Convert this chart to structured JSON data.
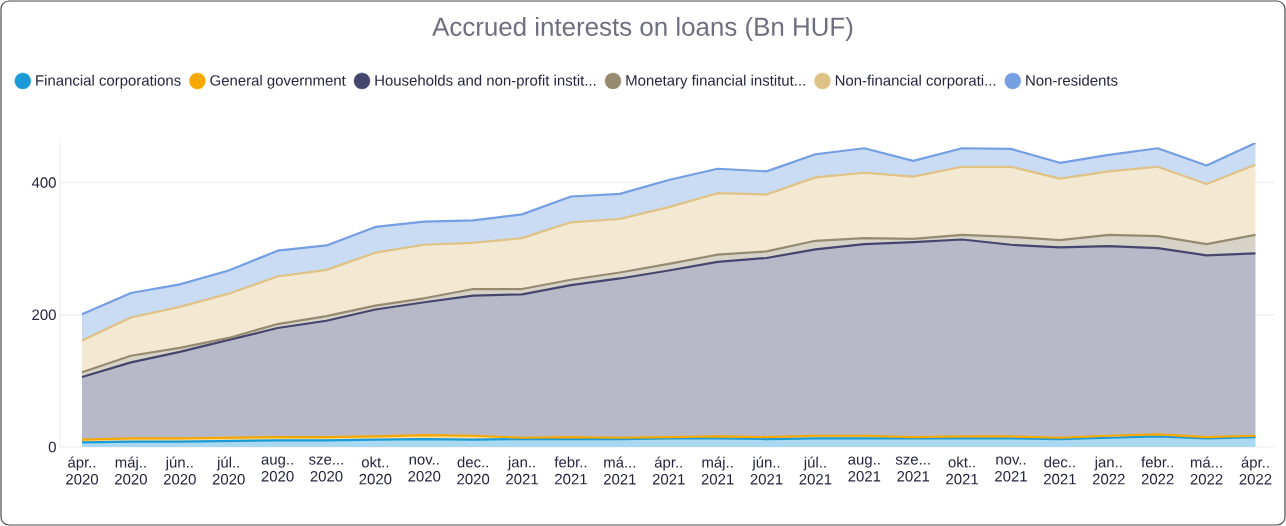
{
  "chart_data": {
    "type": "area",
    "title": "Accrued interests on loans (Bn HUF)",
    "stacked": true,
    "grid": "y",
    "legend": "top",
    "categories": [
      "ápr.. 2020",
      "máj.. 2020",
      "jún.. 2020",
      "júl.. 2020",
      "aug.. 2020",
      "sze... 2020",
      "okt.. 2020",
      "nov.. 2020",
      "dec.. 2020",
      "jan.. 2021",
      "febr.. 2021",
      "má... 2021",
      "ápr.. 2021",
      "máj.. 2021",
      "jún.. 2021",
      "júl.. 2021",
      "aug.. 2021",
      "sze... 2021",
      "okt.. 2021",
      "nov.. 2021",
      "dec.. 2021",
      "jan.. 2022",
      "febr.. 2022",
      "má... 2022",
      "ápr.. 2022"
    ],
    "ylim": [
      0,
      460
    ],
    "yticks": [
      0,
      200,
      400
    ],
    "series": [
      {
        "name": "Financial corporations",
        "color": "#1a9bd7",
        "values": [
          7,
          8,
          8,
          9,
          10,
          10,
          11,
          12,
          11,
          12,
          12,
          12,
          13,
          13,
          12,
          13,
          13,
          13,
          13,
          13,
          12,
          14,
          16,
          13,
          15
        ]
      },
      {
        "name": "General government",
        "color": "#f5a800",
        "values": [
          4,
          5,
          5,
          5,
          5,
          5,
          5,
          6,
          6,
          2,
          3,
          2,
          2,
          3,
          3,
          4,
          4,
          2,
          3,
          3,
          2,
          3,
          3,
          2,
          2
        ]
      },
      {
        "name": "Households and non-profit instit...",
        "color": "#45466e",
        "values": [
          95,
          115,
          131,
          148,
          165,
          176,
          192,
          201,
          212,
          217,
          230,
          241,
          252,
          264,
          271,
          282,
          290,
          295,
          298,
          290,
          288,
          287,
          282,
          275,
          276
        ]
      },
      {
        "name": "Monetary financial institut...",
        "color": "#968b71",
        "values": [
          7,
          10,
          6,
          3,
          6,
          7,
          6,
          6,
          10,
          8,
          8,
          9,
          10,
          11,
          10,
          13,
          9,
          5,
          7,
          12,
          11,
          17,
          18,
          17,
          28
        ]
      },
      {
        "name": "Non-financial corporati...",
        "color": "#dfc286",
        "values": [
          48,
          58,
          62,
          67,
          72,
          70,
          80,
          81,
          70,
          77,
          87,
          81,
          86,
          93,
          86,
          96,
          99,
          94,
          103,
          106,
          93,
          96,
          105,
          91,
          106
        ]
      },
      {
        "name": "Non-residents",
        "color": "#749fe3",
        "values": [
          40,
          37,
          34,
          35,
          39,
          37,
          39,
          35,
          34,
          36,
          39,
          38,
          41,
          37,
          35,
          35,
          37,
          24,
          28,
          27,
          24,
          25,
          28,
          28,
          33
        ]
      }
    ]
  }
}
